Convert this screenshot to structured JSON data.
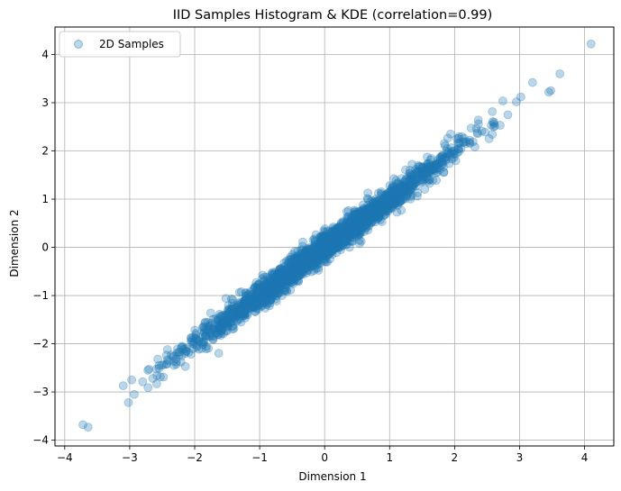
{
  "chart_data": {
    "type": "scatter",
    "title": "IID Samples Histogram & KDE (correlation=0.99)",
    "xlabel": "Dimension 1",
    "ylabel": "Dimension 2",
    "xlim": [
      -4.15,
      4.45
    ],
    "ylim": [
      -4.12,
      4.57
    ],
    "xticks": [
      -4,
      -3,
      -2,
      -1,
      0,
      1,
      2,
      3,
      4
    ],
    "yticks": [
      -4,
      -3,
      -2,
      -1,
      0,
      1,
      2,
      3,
      4
    ],
    "grid": true,
    "legend": {
      "position": "upper-left",
      "entries": [
        "2D Samples"
      ]
    },
    "series": [
      {
        "name": "2D Samples",
        "color": "#1f77b4",
        "alpha": 0.3,
        "marker": "circle",
        "correlation": 0.99,
        "points": [
          [
            -3.72,
            -3.68
          ],
          [
            -3.64,
            -3.73
          ],
          [
            -3.1,
            -2.87
          ],
          [
            -3.02,
            -3.22
          ],
          [
            -2.97,
            -2.75
          ],
          [
            -2.93,
            -3.05
          ],
          [
            -2.72,
            -2.55
          ],
          [
            -2.55,
            -2.45
          ],
          [
            -2.42,
            -2.33
          ],
          [
            -2.2,
            -2.25
          ],
          [
            -2.05,
            -1.88
          ],
          [
            -1.85,
            -1.75
          ],
          [
            -1.62,
            -1.52
          ],
          [
            -1.4,
            -1.44
          ],
          [
            -1.15,
            -1.08
          ],
          [
            -0.95,
            -0.9
          ],
          [
            -0.72,
            -0.75
          ],
          [
            -0.55,
            -0.48
          ],
          [
            -0.3,
            -0.33
          ],
          [
            -0.1,
            -0.05
          ],
          [
            0.1,
            0.12
          ],
          [
            0.35,
            0.3
          ],
          [
            0.6,
            0.62
          ],
          [
            0.85,
            0.8
          ],
          [
            1.1,
            1.12
          ],
          [
            1.35,
            1.3
          ],
          [
            1.6,
            1.62
          ],
          [
            1.85,
            1.85
          ],
          [
            2.1,
            2.05
          ],
          [
            2.35,
            2.38
          ],
          [
            2.6,
            2.5
          ],
          [
            2.82,
            2.75
          ],
          [
            2.95,
            3.02
          ],
          [
            3.02,
            3.12
          ],
          [
            3.2,
            3.42
          ],
          [
            3.45,
            3.22
          ],
          [
            3.48,
            3.25
          ],
          [
            3.62,
            3.6
          ],
          [
            4.1,
            4.22
          ]
        ]
      }
    ]
  }
}
